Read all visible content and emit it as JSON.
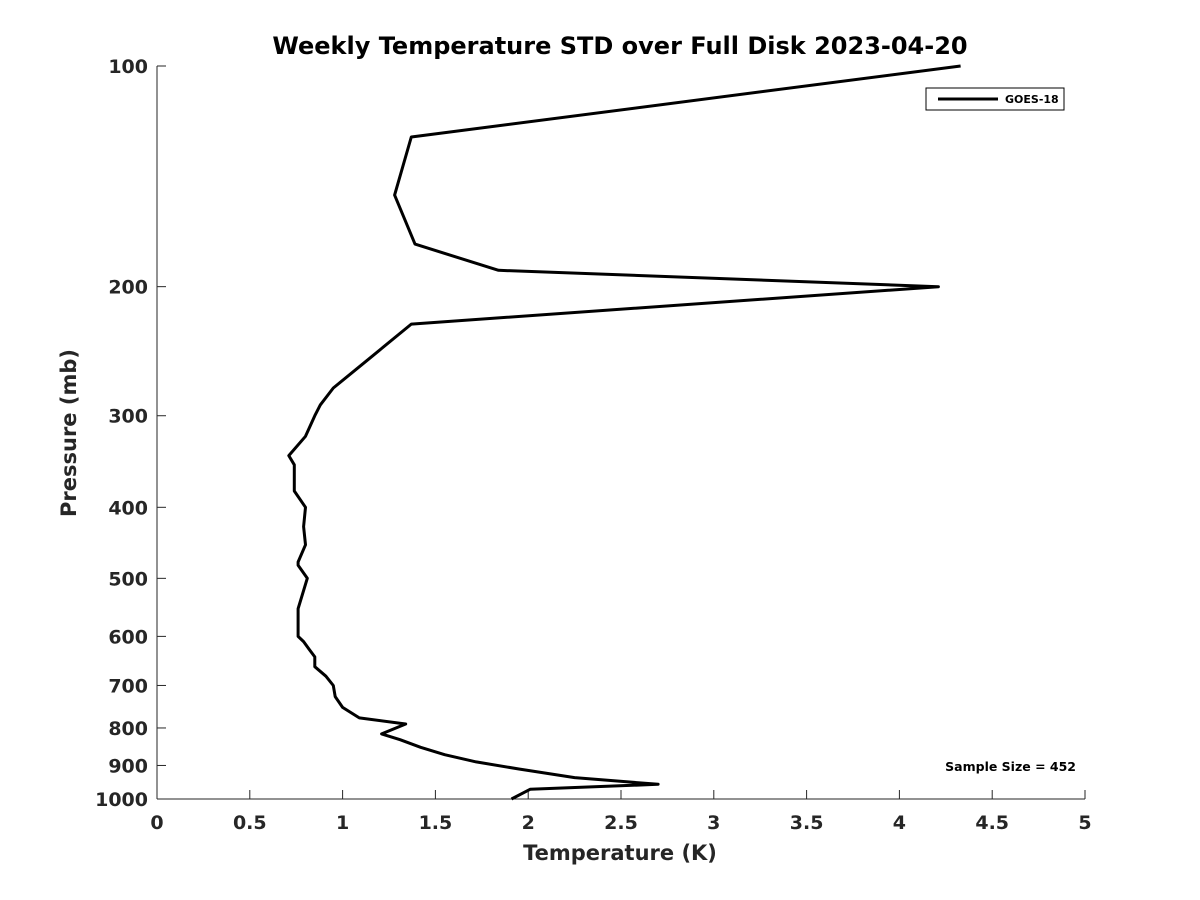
{
  "chart_data": {
    "type": "line",
    "title": "Weekly Temperature STD over Full Disk 2023-04-20",
    "xlabel": "Temperature (K)",
    "ylabel": "Pressure (mb)",
    "xlim": [
      0,
      5
    ],
    "ylim": [
      100,
      1000
    ],
    "y_scale": "log",
    "y_reversed": true,
    "grid": false,
    "legend_position": "top-right",
    "x_ticks": [
      "0",
      "0.5",
      "1",
      "1.5",
      "2",
      "2.5",
      "3",
      "3.5",
      "4",
      "4.5",
      "5"
    ],
    "y_ticks": [
      "100",
      "200",
      "300",
      "400",
      "500",
      "600",
      "700",
      "800",
      "900",
      "1000"
    ],
    "series": [
      {
        "name": "GOES-18",
        "color": "#000000",
        "points": [
          [
            4.33,
            100
          ],
          [
            1.37,
            125
          ],
          [
            1.28,
            150
          ],
          [
            1.39,
            175
          ],
          [
            1.84,
            190
          ],
          [
            4.21,
            200
          ],
          [
            1.37,
            225
          ],
          [
            1.15,
            250
          ],
          [
            0.95,
            275
          ],
          [
            0.88,
            290
          ],
          [
            0.85,
            300
          ],
          [
            0.8,
            320
          ],
          [
            0.71,
            340
          ],
          [
            0.74,
            350
          ],
          [
            0.74,
            380
          ],
          [
            0.8,
            400
          ],
          [
            0.79,
            425
          ],
          [
            0.8,
            450
          ],
          [
            0.76,
            475
          ],
          [
            0.76,
            480
          ],
          [
            0.81,
            500
          ],
          [
            0.76,
            550
          ],
          [
            0.76,
            600
          ],
          [
            0.79,
            610
          ],
          [
            0.82,
            625
          ],
          [
            0.85,
            640
          ],
          [
            0.85,
            660
          ],
          [
            0.91,
            680
          ],
          [
            0.95,
            700
          ],
          [
            0.96,
            725
          ],
          [
            1.0,
            750
          ],
          [
            1.09,
            775
          ],
          [
            1.34,
            790
          ],
          [
            1.21,
            815
          ],
          [
            1.31,
            830
          ],
          [
            1.42,
            850
          ],
          [
            1.55,
            870
          ],
          [
            1.72,
            890
          ],
          [
            1.95,
            910
          ],
          [
            2.25,
            935
          ],
          [
            2.7,
            955
          ],
          [
            2.01,
            970
          ],
          [
            1.91,
            1000
          ]
        ]
      }
    ],
    "annotation": "Sample Size = 452"
  }
}
